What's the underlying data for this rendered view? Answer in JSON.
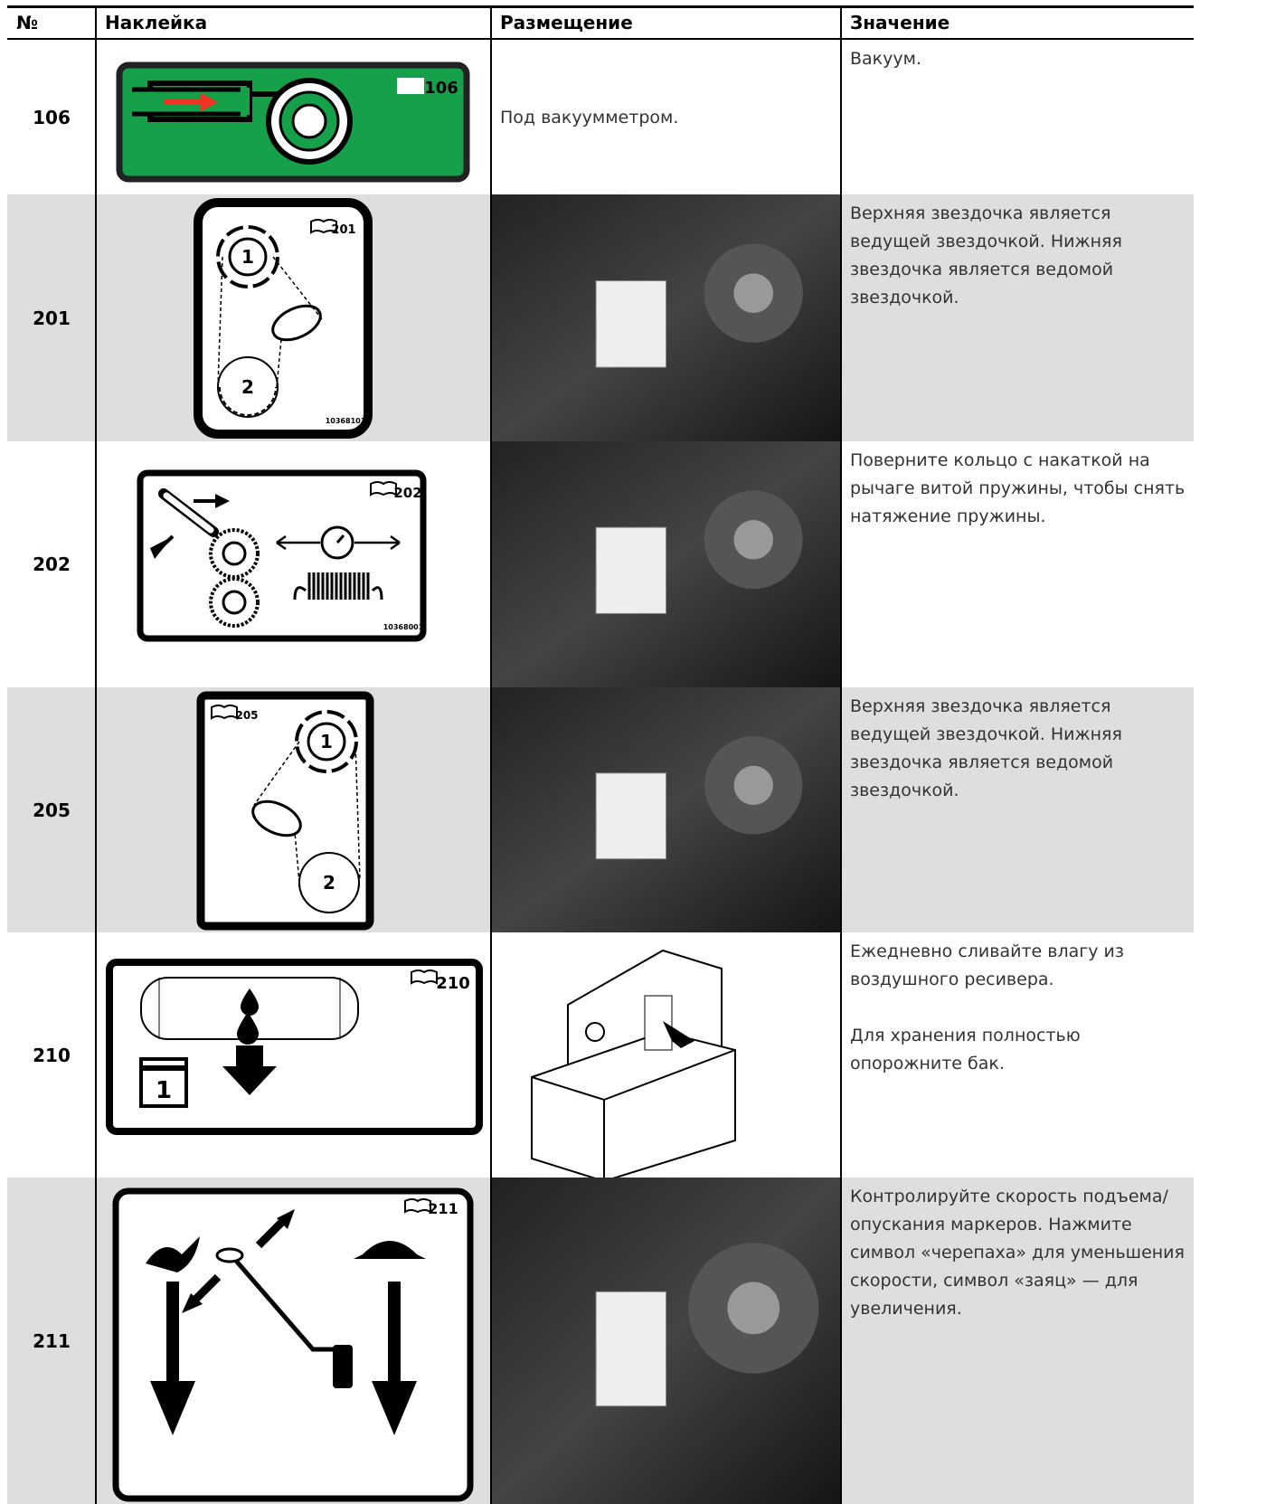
{
  "table": {
    "headers": [
      "№",
      "Наклейка",
      "Размещение",
      "Значение"
    ],
    "rows": [
      {
        "number": "106",
        "decal": {
          "book": "106"
        },
        "placement": "Под вакуумметром.",
        "meaning": [
          "Вакуум."
        ]
      },
      {
        "number": "201",
        "decal": {
          "book": "201",
          "code": "10368101",
          "marks": [
            "1",
            "2"
          ]
        },
        "meaning": [
          "Верхняя звездочка является ведущей звездочкой. Нижняя звездочка является ведомой звездочкой."
        ]
      },
      {
        "number": "202",
        "decal": {
          "book": "202",
          "code": "10368001"
        },
        "meaning": [
          "Поверните кольцо с накаткой на рычаге витой пружины, чтобы снять натяжение пружины."
        ]
      },
      {
        "number": "205",
        "decal": {
          "book": "205",
          "marks": [
            "1",
            "2"
          ]
        },
        "meaning": [
          "Верхняя звездочка является ведущей звездочкой. Нижняя звездочка является ведомой звездочкой."
        ]
      },
      {
        "number": "210",
        "decal": {
          "book": "210",
          "marks": [
            "1"
          ]
        },
        "meaning": [
          "Ежедневно сливайте влагу из воздушного ресивера.",
          "Для хранения полностью опорожните бак."
        ]
      },
      {
        "number": "211",
        "decal": {
          "book": "211"
        },
        "meaning": [
          "Контролируйте скорость подъема/опускания маркеров. Нажмите символ «черепаха» для уменьшения скорости, символ «заяц» — для увеличения."
        ]
      }
    ]
  }
}
